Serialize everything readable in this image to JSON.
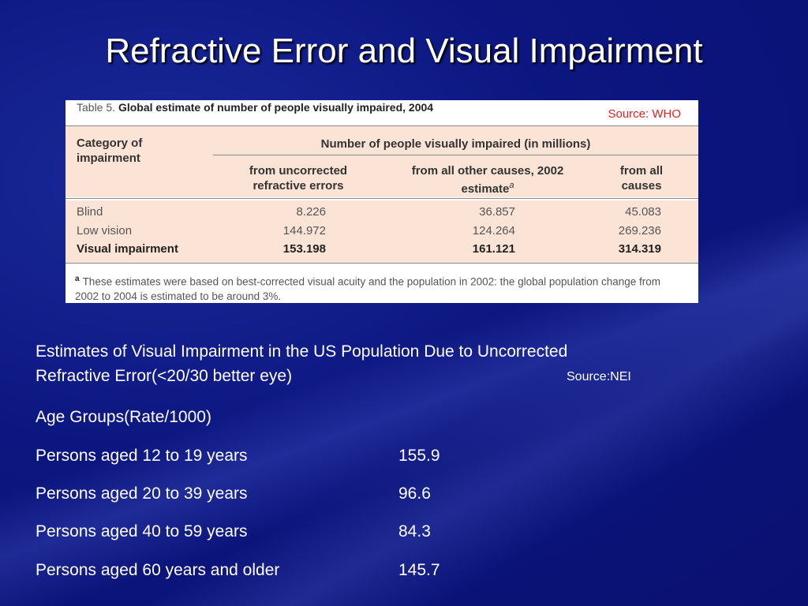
{
  "title": "Refractive Error and Visual Impairment",
  "who_table": {
    "caption_prefix": "Table 5.",
    "caption": "Global estimate of number of people visually impaired, 2004",
    "source": "Source: WHO",
    "header_category": "Category of impairment",
    "header_group": "Number of people visually impaired (in millions)",
    "col_uncorrected": "from uncorrected refractive errors",
    "col_other": "from all other causes, 2002 estimate",
    "col_other_sup": "a",
    "col_all": "from all causes",
    "rows": [
      {
        "category": "Blind",
        "uncorrected": "8.226",
        "other": "36.857",
        "all": "45.083"
      },
      {
        "category": "Low vision",
        "uncorrected": "144.972",
        "other": "124.264",
        "all": "269.236"
      },
      {
        "category": "Visual impairment",
        "uncorrected": "153.198",
        "other": "161.121",
        "all": "314.319"
      }
    ],
    "footnote_mark": "a",
    "footnote": "These estimates were based on best-corrected visual acuity and the population in 2002: the global population change from 2002 to 2004 is estimated to be around 3%."
  },
  "nei": {
    "heading_line1": "Estimates of Visual Impairment in the US Population Due to Uncorrected",
    "heading_line2": "Refractive Error(<20/30 better eye)",
    "source": "Source:NEI",
    "groups_label": "Age Groups(Rate/1000)",
    "rows": [
      {
        "label": "Persons aged 12 to 19 years",
        "rate": "155.9"
      },
      {
        "label": "Persons aged 20 to 39 years",
        "rate": "96.6"
      },
      {
        "label": "Persons aged 40 to 59 years",
        "rate": "84.3"
      },
      {
        "label": "Persons aged 60 years and older",
        "rate": "145.7"
      }
    ]
  }
}
